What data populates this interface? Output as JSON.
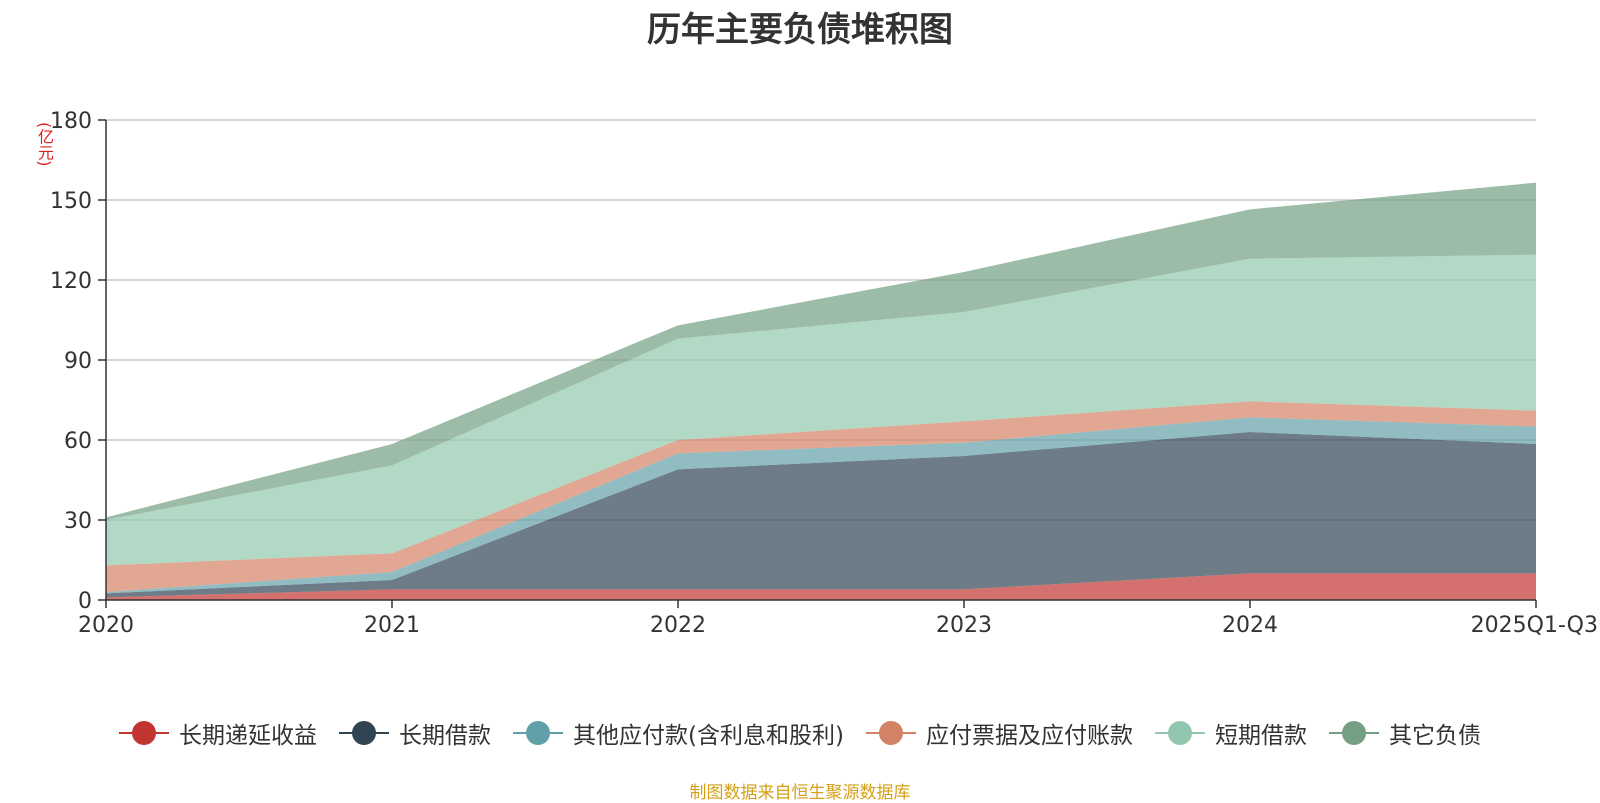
{
  "chart_data": {
    "type": "area",
    "stacked": true,
    "title": "历年主要负债堆积图",
    "unit_label": "(亿元)",
    "xlabel": "",
    "ylabel": "",
    "categories": [
      "2020",
      "2021",
      "2022",
      "2023",
      "2024",
      "2025Q1-Q3"
    ],
    "y_ticks": [
      0,
      30,
      60,
      90,
      120,
      150,
      180
    ],
    "ylim": [
      0,
      180
    ],
    "grid": true,
    "series": [
      {
        "name": "长期递延收益",
        "color": "#c23531",
        "values": [
          1,
          4,
          4,
          4,
          10,
          10
        ]
      },
      {
        "name": "长期借款",
        "color": "#2f4554",
        "values": [
          1.5,
          3.5,
          45,
          50,
          53,
          48.5
        ]
      },
      {
        "name": "其他应付款(含利息和股利)",
        "color": "#61a0a8",
        "values": [
          0.5,
          3,
          6,
          5,
          5.5,
          6.5
        ]
      },
      {
        "name": "应付票据及应付账款",
        "color": "#d48265",
        "values": [
          10,
          7,
          5,
          8,
          6,
          6
        ]
      },
      {
        "name": "短期借款",
        "color": "#91c7ae",
        "values": [
          17,
          33,
          38,
          41,
          53.5,
          58.5
        ]
      },
      {
        "name": "其它负债",
        "color": "#749f83",
        "values": [
          1,
          8,
          5,
          15,
          18.5,
          27
        ]
      }
    ],
    "legend_position": "bottom",
    "source": "制图数据来自恒生聚源数据库"
  }
}
